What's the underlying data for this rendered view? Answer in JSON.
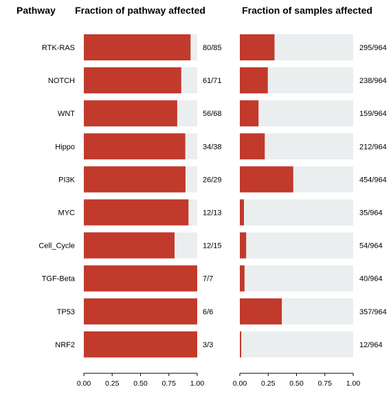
{
  "headers": {
    "pathway": "Pathway",
    "left": "Fraction of pathway affected",
    "right": "Fraction of samples affected"
  },
  "colors": {
    "fill": "#C13A2C",
    "background": "#EBEEEF",
    "axis": "#000000"
  },
  "chart_data": [
    {
      "type": "bar",
      "orientation": "horizontal",
      "title": "Fraction of pathway affected",
      "categories": [
        "RTK-RAS",
        "NOTCH",
        "WNT",
        "Hippo",
        "PI3K",
        "MYC",
        "Cell_Cycle",
        "TGF-Beta",
        "TP53",
        "NRF2"
      ],
      "values": [
        0.9412,
        0.8592,
        0.8235,
        0.8947,
        0.8966,
        0.9231,
        0.8,
        1.0,
        1.0,
        1.0
      ],
      "data_labels": [
        "80/85",
        "61/71",
        "56/68",
        "34/38",
        "26/29",
        "12/13",
        "12/15",
        "7/7",
        "6/6",
        "3/3"
      ],
      "xlim": [
        0,
        1
      ],
      "xticks": [
        "0.00",
        "0.25",
        "0.50",
        "0.75",
        "1.00"
      ],
      "grid": false
    },
    {
      "type": "bar",
      "orientation": "horizontal",
      "title": "Fraction of samples affected",
      "categories": [
        "RTK-RAS",
        "NOTCH",
        "WNT",
        "Hippo",
        "PI3K",
        "MYC",
        "Cell_Cycle",
        "TGF-Beta",
        "TP53",
        "NRF2"
      ],
      "values": [
        0.306,
        0.2469,
        0.1649,
        0.2199,
        0.471,
        0.0363,
        0.056,
        0.0415,
        0.3703,
        0.0124
      ],
      "data_labels": [
        "295/964",
        "238/964",
        "159/964",
        "212/964",
        "454/964",
        "35/964",
        "54/964",
        "40/964",
        "357/964",
        "12/964"
      ],
      "xlim": [
        0,
        1
      ],
      "xticks": [
        "0.00",
        "0.25",
        "0.50",
        "0.75",
        "1.00"
      ],
      "grid": false
    }
  ]
}
